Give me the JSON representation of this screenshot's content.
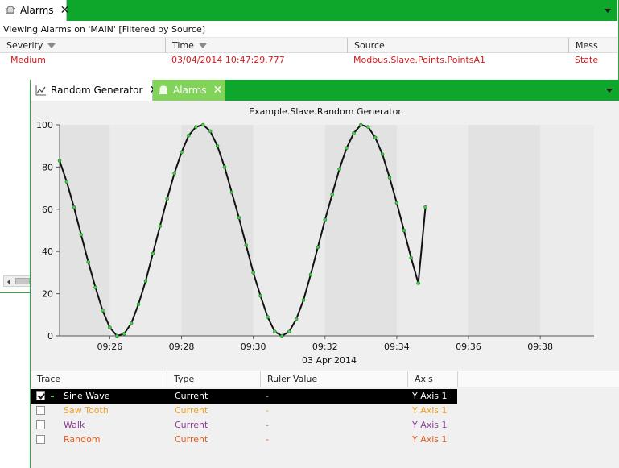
{
  "alarms_window": {
    "tab": {
      "label": "Alarms",
      "close": "✕"
    },
    "caption": "Viewing Alarms on 'MAIN' [Filtered by Source]",
    "columns": [
      "Severity",
      "Time",
      "Source",
      "Mess"
    ],
    "rows": [
      {
        "severity": "Medium",
        "time": "03/04/2014 10:47:29.777",
        "source": "Modbus.Slave.Points.PointsA1",
        "message": "State"
      }
    ],
    "row_color": "#d31b1b"
  },
  "trend_window": {
    "tabs": [
      {
        "label": "Random Generator",
        "close": "✕",
        "icon": "chart-icon"
      },
      {
        "label": "Alarms",
        "close": "✕",
        "icon": "alarm-bell-icon"
      }
    ],
    "accent_color": "#0ea62b"
  },
  "chart_data": {
    "type": "line",
    "title": "Example.Slave.Random Generator",
    "xlabel": "03 Apr 2014",
    "ylabel": "",
    "x_tick_labels": [
      "09:26",
      "09:28",
      "09:30",
      "09:32",
      "09:34",
      "09:36",
      "09:38"
    ],
    "x_range_minutes": [
      24.6,
      39.5
    ],
    "x_tick_minutes": [
      26,
      28,
      30,
      32,
      34,
      36,
      38
    ],
    "y_ticks": [
      0,
      20,
      40,
      60,
      80,
      100
    ],
    "ylim": [
      0,
      100
    ],
    "grid": "alternating vertical bands",
    "series": [
      {
        "name": "Sine Wave",
        "color": "#111111",
        "marker_color": "#3fd14a",
        "x_minutes": [
          24.6,
          24.8,
          25.0,
          25.2,
          25.4,
          25.6,
          25.8,
          26.0,
          26.2,
          26.4,
          26.6,
          26.8,
          27.0,
          27.2,
          27.4,
          27.6,
          27.8,
          28.0,
          28.2,
          28.4,
          28.6,
          28.8,
          29.0,
          29.2,
          29.4,
          29.6,
          29.8,
          30.0,
          30.2,
          30.4,
          30.6,
          30.8,
          31.0,
          31.2,
          31.4,
          31.6,
          31.8,
          32.0,
          32.2,
          32.4,
          32.6,
          32.8,
          33.0,
          33.2,
          33.4,
          33.6,
          33.8,
          34.0,
          34.2,
          34.4,
          34.6,
          34.8
        ],
        "values": [
          83,
          73,
          61,
          48,
          35,
          23,
          12,
          4,
          0,
          1,
          6,
          15,
          26,
          39,
          52,
          65,
          77,
          87,
          95,
          99,
          100,
          97,
          90,
          80,
          68,
          56,
          43,
          30,
          19,
          9,
          2,
          0,
          2,
          8,
          17,
          29,
          42,
          55,
          67,
          79,
          89,
          96,
          100,
          99,
          94,
          86,
          75,
          63,
          50,
          37,
          25,
          61
        ]
      },
      {
        "name": "Saw Tooth",
        "color": "#f0a11f"
      },
      {
        "name": "Walk",
        "color": "#8e3c98"
      },
      {
        "name": "Random",
        "color": "#e35b1d"
      }
    ]
  },
  "trace_table": {
    "columns": [
      "Trace",
      "Type",
      "Ruler Value",
      "Axis"
    ],
    "rows": [
      {
        "name": "Sine Wave",
        "type": "Current",
        "ruler": "-",
        "axis": "Y Axis 1",
        "checked": true,
        "selected": true,
        "color": "#ffffff"
      },
      {
        "name": "Saw Tooth",
        "type": "Current",
        "ruler": "-",
        "axis": "Y Axis 1",
        "checked": false,
        "selected": false,
        "color": "#f0a11f"
      },
      {
        "name": "Walk",
        "type": "Current",
        "ruler": "-",
        "axis": "Y Axis 1",
        "checked": false,
        "selected": false,
        "color": "#8e3c98"
      },
      {
        "name": "Random",
        "type": "Current",
        "ruler": "-",
        "axis": "Y Axis 1",
        "checked": false,
        "selected": false,
        "color": "#e35b1d"
      }
    ]
  }
}
